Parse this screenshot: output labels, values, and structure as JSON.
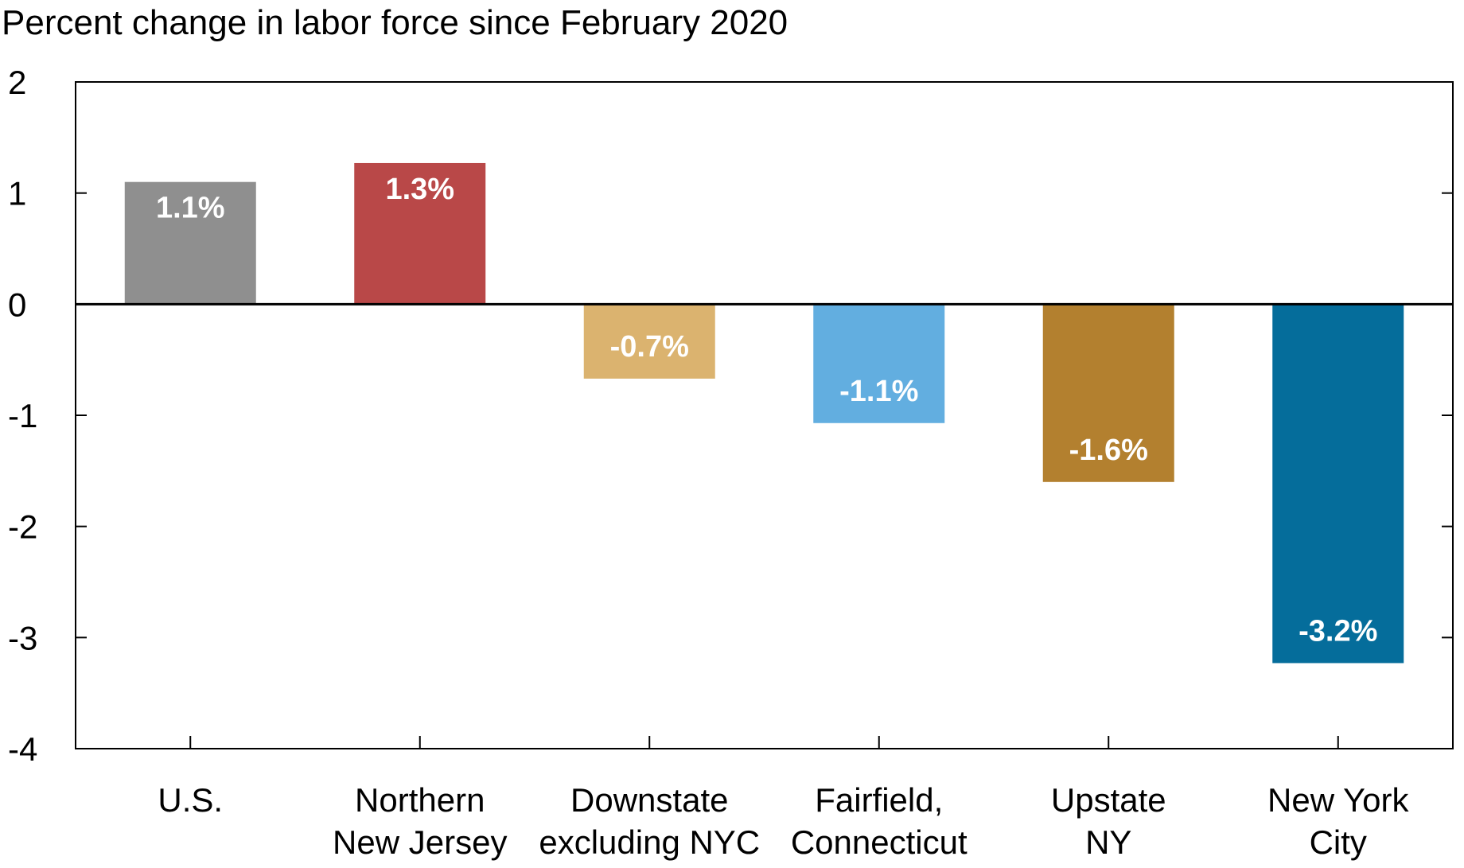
{
  "chart_data": {
    "type": "bar",
    "title": "Percent change in labor force since February 2020",
    "xlabel": "",
    "ylabel": "",
    "ylim": [
      -4,
      2
    ],
    "yticks": [
      2,
      1,
      0,
      -1,
      -2,
      -3,
      -4
    ],
    "grid": false,
    "categories": [
      [
        "U.S."
      ],
      [
        "Northern",
        "New Jersey"
      ],
      [
        "Downstate",
        "excluding NYC"
      ],
      [
        "Fairfield,",
        "Connecticut"
      ],
      [
        "Upstate",
        "NY"
      ],
      [
        "New York",
        "City"
      ]
    ],
    "values": [
      1.1,
      1.27,
      -0.67,
      -1.07,
      -1.6,
      -3.23
    ],
    "data_labels": [
      "1.1%",
      "1.3%",
      "-0.7%",
      "-1.1%",
      "-1.6%",
      "-3.2%"
    ],
    "colors": [
      "#8f8f8f",
      "#b94848",
      "#dbb36f",
      "#62aee0",
      "#b3802f",
      "#056d9b"
    ]
  }
}
